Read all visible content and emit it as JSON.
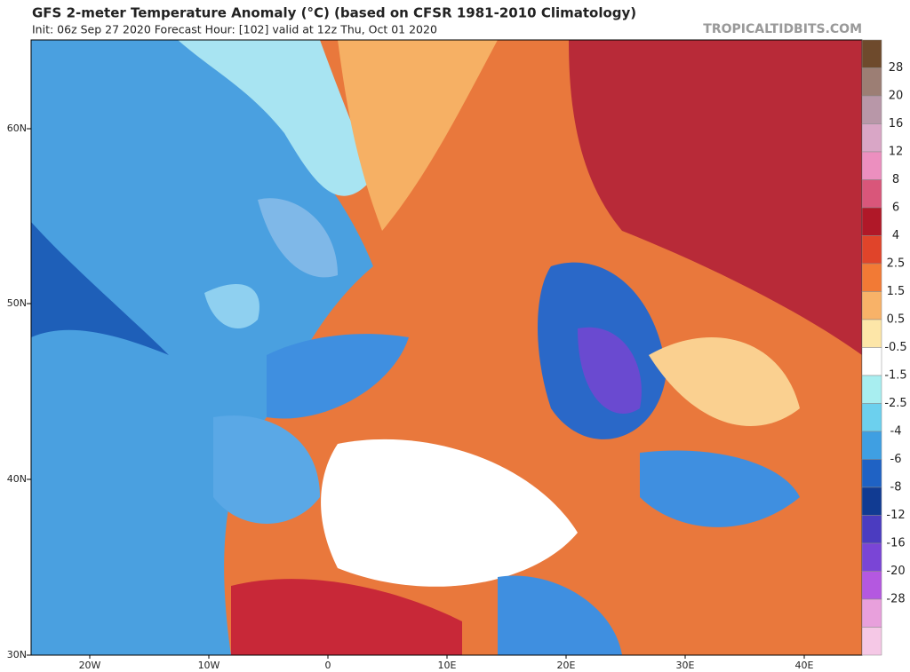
{
  "header": {
    "title": "GFS 2-meter Temperature Anomaly (°C) (based on CFSR 1981-2010 Climatology)",
    "subtitle": "Init: 06z Sep 27 2020   Forecast Hour: [102]   valid at 12z Thu, Oct 01 2020",
    "site": "TROPICALTIDBITS.COM"
  },
  "map": {
    "lat_labels": [
      "60N",
      "50N",
      "40N",
      "30N"
    ],
    "lon_labels": [
      "20W",
      "10W",
      "0",
      "10E",
      "20E",
      "30E",
      "40E"
    ]
  },
  "colorbar": {
    "labels": [
      "28",
      "20",
      "16",
      "12",
      "8",
      "6",
      "4",
      "2.5",
      "1.5",
      "0.5",
      "-0.5",
      "-1.5",
      "-2.5",
      "-4",
      "-6",
      "-8",
      "-12",
      "-16",
      "-20",
      "-28"
    ],
    "colors": [
      "#6e4a2c",
      "#9c7e74",
      "#b897a8",
      "#d9a6c6",
      "#ec8fbf",
      "#d9567a",
      "#b01828",
      "#e0442a",
      "#f27a35",
      "#f8b268",
      "#fde6a8",
      "#ffffff",
      "#a8eef0",
      "#6cd0ee",
      "#3f9fe2",
      "#1f62c4",
      "#113b92",
      "#4b3cc0",
      "#7a45d6",
      "#b458e0",
      "#e8a0dc",
      "#f5c8e6"
    ]
  }
}
